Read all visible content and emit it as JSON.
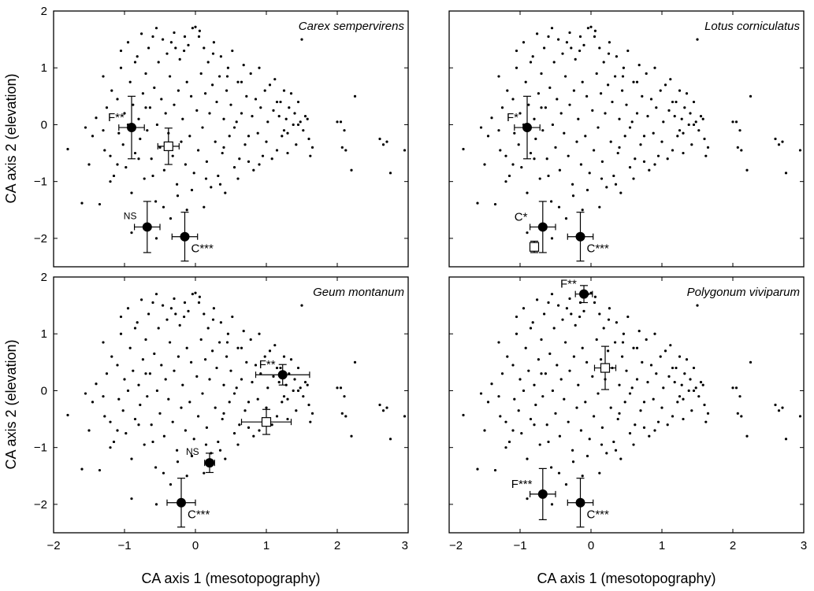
{
  "figure": {
    "ylabel": "CA axis 2 (elevation)",
    "xlabel": "CA axis 1 (mesotopography)",
    "xticks": [
      -2,
      -1,
      0,
      1,
      2,
      3
    ],
    "yticks": [
      -2,
      -1,
      0,
      1,
      2
    ]
  },
  "chart_data": [
    {
      "type": "scatter",
      "title": "Carex sempervirens",
      "xlabel": "",
      "ylabel": "CA axis 2 (elevation)",
      "xlim": [
        -2,
        3
      ],
      "ylim": [
        -2.5,
        2
      ],
      "grid": false,
      "markers": [
        {
          "shape": "circle",
          "x": -0.9,
          "y": -0.05,
          "xerr": 0.18,
          "yerr": 0.55,
          "label": "F**"
        },
        {
          "shape": "square",
          "x": -0.38,
          "y": -0.38,
          "xerr": 0.15,
          "yerr": 0.32,
          "label": ""
        },
        {
          "shape": "circle",
          "x": -0.68,
          "y": -1.8,
          "xerr": 0.18,
          "yerr": 0.45,
          "label": "NS"
        },
        {
          "shape": "circle",
          "x": -0.15,
          "y": -1.97,
          "xerr": 0.18,
          "yerr": 0.43,
          "label": "C***"
        }
      ]
    },
    {
      "type": "scatter",
      "title": "Lotus corniculatus",
      "xlabel": "",
      "ylabel": "",
      "xlim": [
        -2,
        3
      ],
      "ylim": [
        -2.5,
        2
      ],
      "grid": false,
      "markers": [
        {
          "shape": "circle",
          "x": -0.9,
          "y": -0.05,
          "xerr": 0.18,
          "yerr": 0.55,
          "label": "F*"
        },
        {
          "shape": "circle",
          "x": -0.68,
          "y": -1.8,
          "xerr": 0.18,
          "yerr": 0.45,
          "label": "C*"
        },
        {
          "shape": "square",
          "x": -0.8,
          "y": -2.15,
          "xerr": 0.06,
          "yerr": 0.1,
          "label": ""
        },
        {
          "shape": "circle",
          "x": -0.15,
          "y": -1.97,
          "xerr": 0.18,
          "yerr": 0.43,
          "label": "C***"
        }
      ]
    },
    {
      "type": "scatter",
      "title": "Geum montanum",
      "xlabel": "CA axis 1 (mesotopography)",
      "ylabel": "CA axis 2 (elevation)",
      "xlim": [
        -2,
        3
      ],
      "ylim": [
        -2.5,
        2
      ],
      "grid": false,
      "markers": [
        {
          "shape": "circle",
          "x": 1.23,
          "y": 0.28,
          "xerr": 0.38,
          "yerr": 0.18,
          "label": "F**"
        },
        {
          "shape": "square",
          "x": 1.0,
          "y": -0.55,
          "xerr": 0.35,
          "yerr": 0.22,
          "label": ""
        },
        {
          "shape": "circle",
          "x": 0.2,
          "y": -1.27,
          "xerr": 0.07,
          "yerr": 0.17,
          "label": "NS"
        },
        {
          "shape": "circle",
          "x": -0.2,
          "y": -1.97,
          "xerr": 0.2,
          "yerr": 0.43,
          "label": "C***"
        }
      ]
    },
    {
      "type": "scatter",
      "title": "Polygonum viviparum",
      "xlabel": "CA axis 1 (mesotopography)",
      "ylabel": "",
      "xlim": [
        -2,
        3
      ],
      "ylim": [
        -2.5,
        2
      ],
      "grid": false,
      "markers": [
        {
          "shape": "circle",
          "x": -0.1,
          "y": 1.7,
          "xerr": 0.12,
          "yerr": 0.15,
          "label": "F**"
        },
        {
          "shape": "square",
          "x": 0.2,
          "y": 0.4,
          "xerr": 0.15,
          "yerr": 0.38,
          "label": ""
        },
        {
          "shape": "circle",
          "x": -0.68,
          "y": -1.82,
          "xerr": 0.18,
          "yerr": 0.45,
          "label": "F***"
        },
        {
          "shape": "circle",
          "x": -0.15,
          "y": -1.97,
          "xerr": 0.18,
          "yerr": 0.43,
          "label": "C***"
        }
      ]
    }
  ],
  "background_points": [
    [
      -1.8,
      -0.43
    ],
    [
      -1.6,
      -1.38
    ],
    [
      -1.5,
      -0.7
    ],
    [
      -1.45,
      -0.2
    ],
    [
      -1.4,
      0.12
    ],
    [
      -1.35,
      -1.4
    ],
    [
      -1.3,
      0.85
    ],
    [
      -1.28,
      -0.45
    ],
    [
      -1.25,
      0.3
    ],
    [
      -1.2,
      -0.55
    ],
    [
      -1.18,
      0.6
    ],
    [
      -1.15,
      -0.9
    ],
    [
      -1.1,
      0.45
    ],
    [
      -1.08,
      -0.15
    ],
    [
      -1.05,
      1.0
    ],
    [
      -1.02,
      -0.35
    ],
    [
      -1.0,
      0.2
    ],
    [
      -0.98,
      -0.75
    ],
    [
      -0.95,
      1.45
    ],
    [
      -0.92,
      0.75
    ],
    [
      -0.9,
      -1.2
    ],
    [
      -0.88,
      0.35
    ],
    [
      -0.85,
      -0.5
    ],
    [
      -0.82,
      1.2
    ],
    [
      -0.8,
      0.1
    ],
    [
      -0.78,
      -0.25
    ],
    [
      -0.76,
      1.6
    ],
    [
      -0.74,
      0.55
    ],
    [
      -0.72,
      -0.95
    ],
    [
      -0.7,
      0.9
    ],
    [
      -0.68,
      -0.1
    ],
    [
      -0.66,
      1.35
    ],
    [
      -0.64,
      0.3
    ],
    [
      -0.62,
      -0.6
    ],
    [
      -0.6,
      1.55
    ],
    [
      -0.58,
      0.65
    ],
    [
      -0.56,
      -1.35
    ],
    [
      -0.54,
      0.0
    ],
    [
      -0.52,
      1.1
    ],
    [
      -0.5,
      -0.4
    ],
    [
      -0.48,
      0.45
    ],
    [
      -0.46,
      1.5
    ],
    [
      -0.44,
      -0.8
    ],
    [
      -0.42,
      0.2
    ],
    [
      -0.4,
      1.25
    ],
    [
      -0.38,
      -0.15
    ],
    [
      -0.36,
      0.85
    ],
    [
      -0.34,
      1.45
    ],
    [
      -0.32,
      -0.55
    ],
    [
      -0.3,
      0.35
    ],
    [
      -0.28,
      1.35
    ],
    [
      -0.26,
      -1.05
    ],
    [
      -0.24,
      0.6
    ],
    [
      -0.22,
      1.15
    ],
    [
      -0.2,
      -0.3
    ],
    [
      -0.18,
      0.1
    ],
    [
      -0.16,
      1.3
    ],
    [
      -0.14,
      -0.7
    ],
    [
      -0.12,
      0.75
    ],
    [
      -0.1,
      1.4
    ],
    [
      -0.08,
      -0.2
    ],
    [
      -0.06,
      0.5
    ],
    [
      -0.04,
      1.7
    ],
    [
      -0.02,
      -0.85
    ],
    [
      0.0,
      1.72
    ],
    [
      0.02,
      0.25
    ],
    [
      0.04,
      -0.45
    ],
    [
      0.06,
      1.65
    ],
    [
      0.08,
      0.9
    ],
    [
      0.1,
      -0.05
    ],
    [
      0.12,
      1.35
    ],
    [
      0.14,
      0.55
    ],
    [
      0.16,
      -0.65
    ],
    [
      0.18,
      1.1
    ],
    [
      0.2,
      0.2
    ],
    [
      0.22,
      -1.1
    ],
    [
      0.24,
      0.7
    ],
    [
      0.26,
      1.45
    ],
    [
      0.28,
      -0.3
    ],
    [
      0.3,
      0.4
    ],
    [
      0.32,
      -0.9
    ],
    [
      0.34,
      0.85
    ],
    [
      0.36,
      1.2
    ],
    [
      0.38,
      -0.5
    ],
    [
      0.4,
      0.1
    ],
    [
      0.42,
      -1.2
    ],
    [
      0.44,
      0.6
    ],
    [
      0.46,
      1.0
    ],
    [
      0.48,
      -0.2
    ],
    [
      0.5,
      0.35
    ],
    [
      0.52,
      1.3
    ],
    [
      0.55,
      -0.75
    ],
    [
      0.58,
      0.05
    ],
    [
      0.6,
      0.75
    ],
    [
      0.62,
      -0.6
    ],
    [
      0.65,
      0.2
    ],
    [
      0.68,
      1.05
    ],
    [
      0.7,
      -0.35
    ],
    [
      0.72,
      0.5
    ],
    [
      0.75,
      -0.65
    ],
    [
      0.78,
      0.9
    ],
    [
      0.8,
      0.15
    ],
    [
      0.82,
      -0.8
    ],
    [
      0.85,
      0.45
    ],
    [
      0.88,
      -0.15
    ],
    [
      0.9,
      1.0
    ],
    [
      0.92,
      0.3
    ],
    [
      0.95,
      -0.55
    ],
    [
      0.98,
      0.6
    ],
    [
      1.0,
      -0.3
    ],
    [
      1.02,
      0.05
    ],
    [
      1.05,
      0.7
    ],
    [
      1.08,
      -0.6
    ],
    [
      1.1,
      0.25
    ],
    [
      1.12,
      0.8
    ],
    [
      1.15,
      -0.45
    ],
    [
      1.18,
      0.15
    ],
    [
      1.2,
      0.4
    ],
    [
      1.22,
      -0.2
    ],
    [
      1.25,
      0.6
    ],
    [
      1.28,
      0.1
    ],
    [
      1.3,
      -0.5
    ],
    [
      1.32,
      0.3
    ],
    [
      1.35,
      0.55
    ],
    [
      1.38,
      0.0
    ],
    [
      1.4,
      0.2
    ],
    [
      1.42,
      -0.35
    ],
    [
      1.45,
      0.4
    ],
    [
      1.48,
      0.05
    ],
    [
      1.5,
      1.5
    ],
    [
      1.52,
      -0.1
    ],
    [
      1.55,
      0.15
    ],
    [
      1.58,
      0.1
    ],
    [
      1.6,
      -0.25
    ],
    [
      1.62,
      -0.55
    ],
    [
      1.65,
      -0.4
    ],
    [
      2.0,
      0.05
    ],
    [
      2.05,
      0.05
    ],
    [
      2.07,
      -0.4
    ],
    [
      2.1,
      -0.1
    ],
    [
      2.12,
      -0.45
    ],
    [
      2.2,
      -0.8
    ],
    [
      2.25,
      0.5
    ],
    [
      2.6,
      -0.25
    ],
    [
      2.65,
      -0.35
    ],
    [
      2.7,
      -0.3
    ],
    [
      2.75,
      -0.85
    ],
    [
      2.95,
      -0.45
    ],
    [
      -1.55,
      -0.05
    ],
    [
      -1.2,
      -1.0
    ],
    [
      -0.95,
      0.0
    ],
    [
      -0.7,
      0.3
    ],
    [
      -0.45,
      -1.45
    ],
    [
      -0.25,
      -1.25
    ],
    [
      -0.05,
      -1.15
    ],
    [
      0.15,
      -0.95
    ],
    [
      0.35,
      -1.05
    ],
    [
      0.6,
      -0.95
    ],
    [
      0.9,
      -0.7
    ],
    [
      -1.3,
      -0.1
    ],
    [
      -1.05,
      1.3
    ],
    [
      -0.85,
      1.1
    ],
    [
      -0.55,
      1.7
    ],
    [
      -0.3,
      1.62
    ],
    [
      -0.15,
      1.55
    ],
    [
      0.05,
      1.55
    ],
    [
      0.25,
      1.25
    ],
    [
      0.45,
      0.85
    ],
    [
      0.65,
      0.75
    ],
    [
      1.15,
      0.4
    ],
    [
      1.45,
      0.0
    ],
    [
      1.3,
      -0.15
    ],
    [
      0.75,
      -0.2
    ],
    [
      0.4,
      -0.4
    ],
    [
      -0.6,
      -0.9
    ],
    [
      -0.8,
      -0.6
    ],
    [
      -0.35,
      -1.65
    ],
    [
      -0.12,
      -1.5
    ],
    [
      0.12,
      -1.45
    ],
    [
      -0.9,
      -1.9
    ],
    [
      -0.55,
      -2.0
    ],
    [
      -1.1,
      -0.7
    ],
    [
      0.55,
      -0.05
    ],
    [
      1.25,
      -0.1
    ]
  ]
}
